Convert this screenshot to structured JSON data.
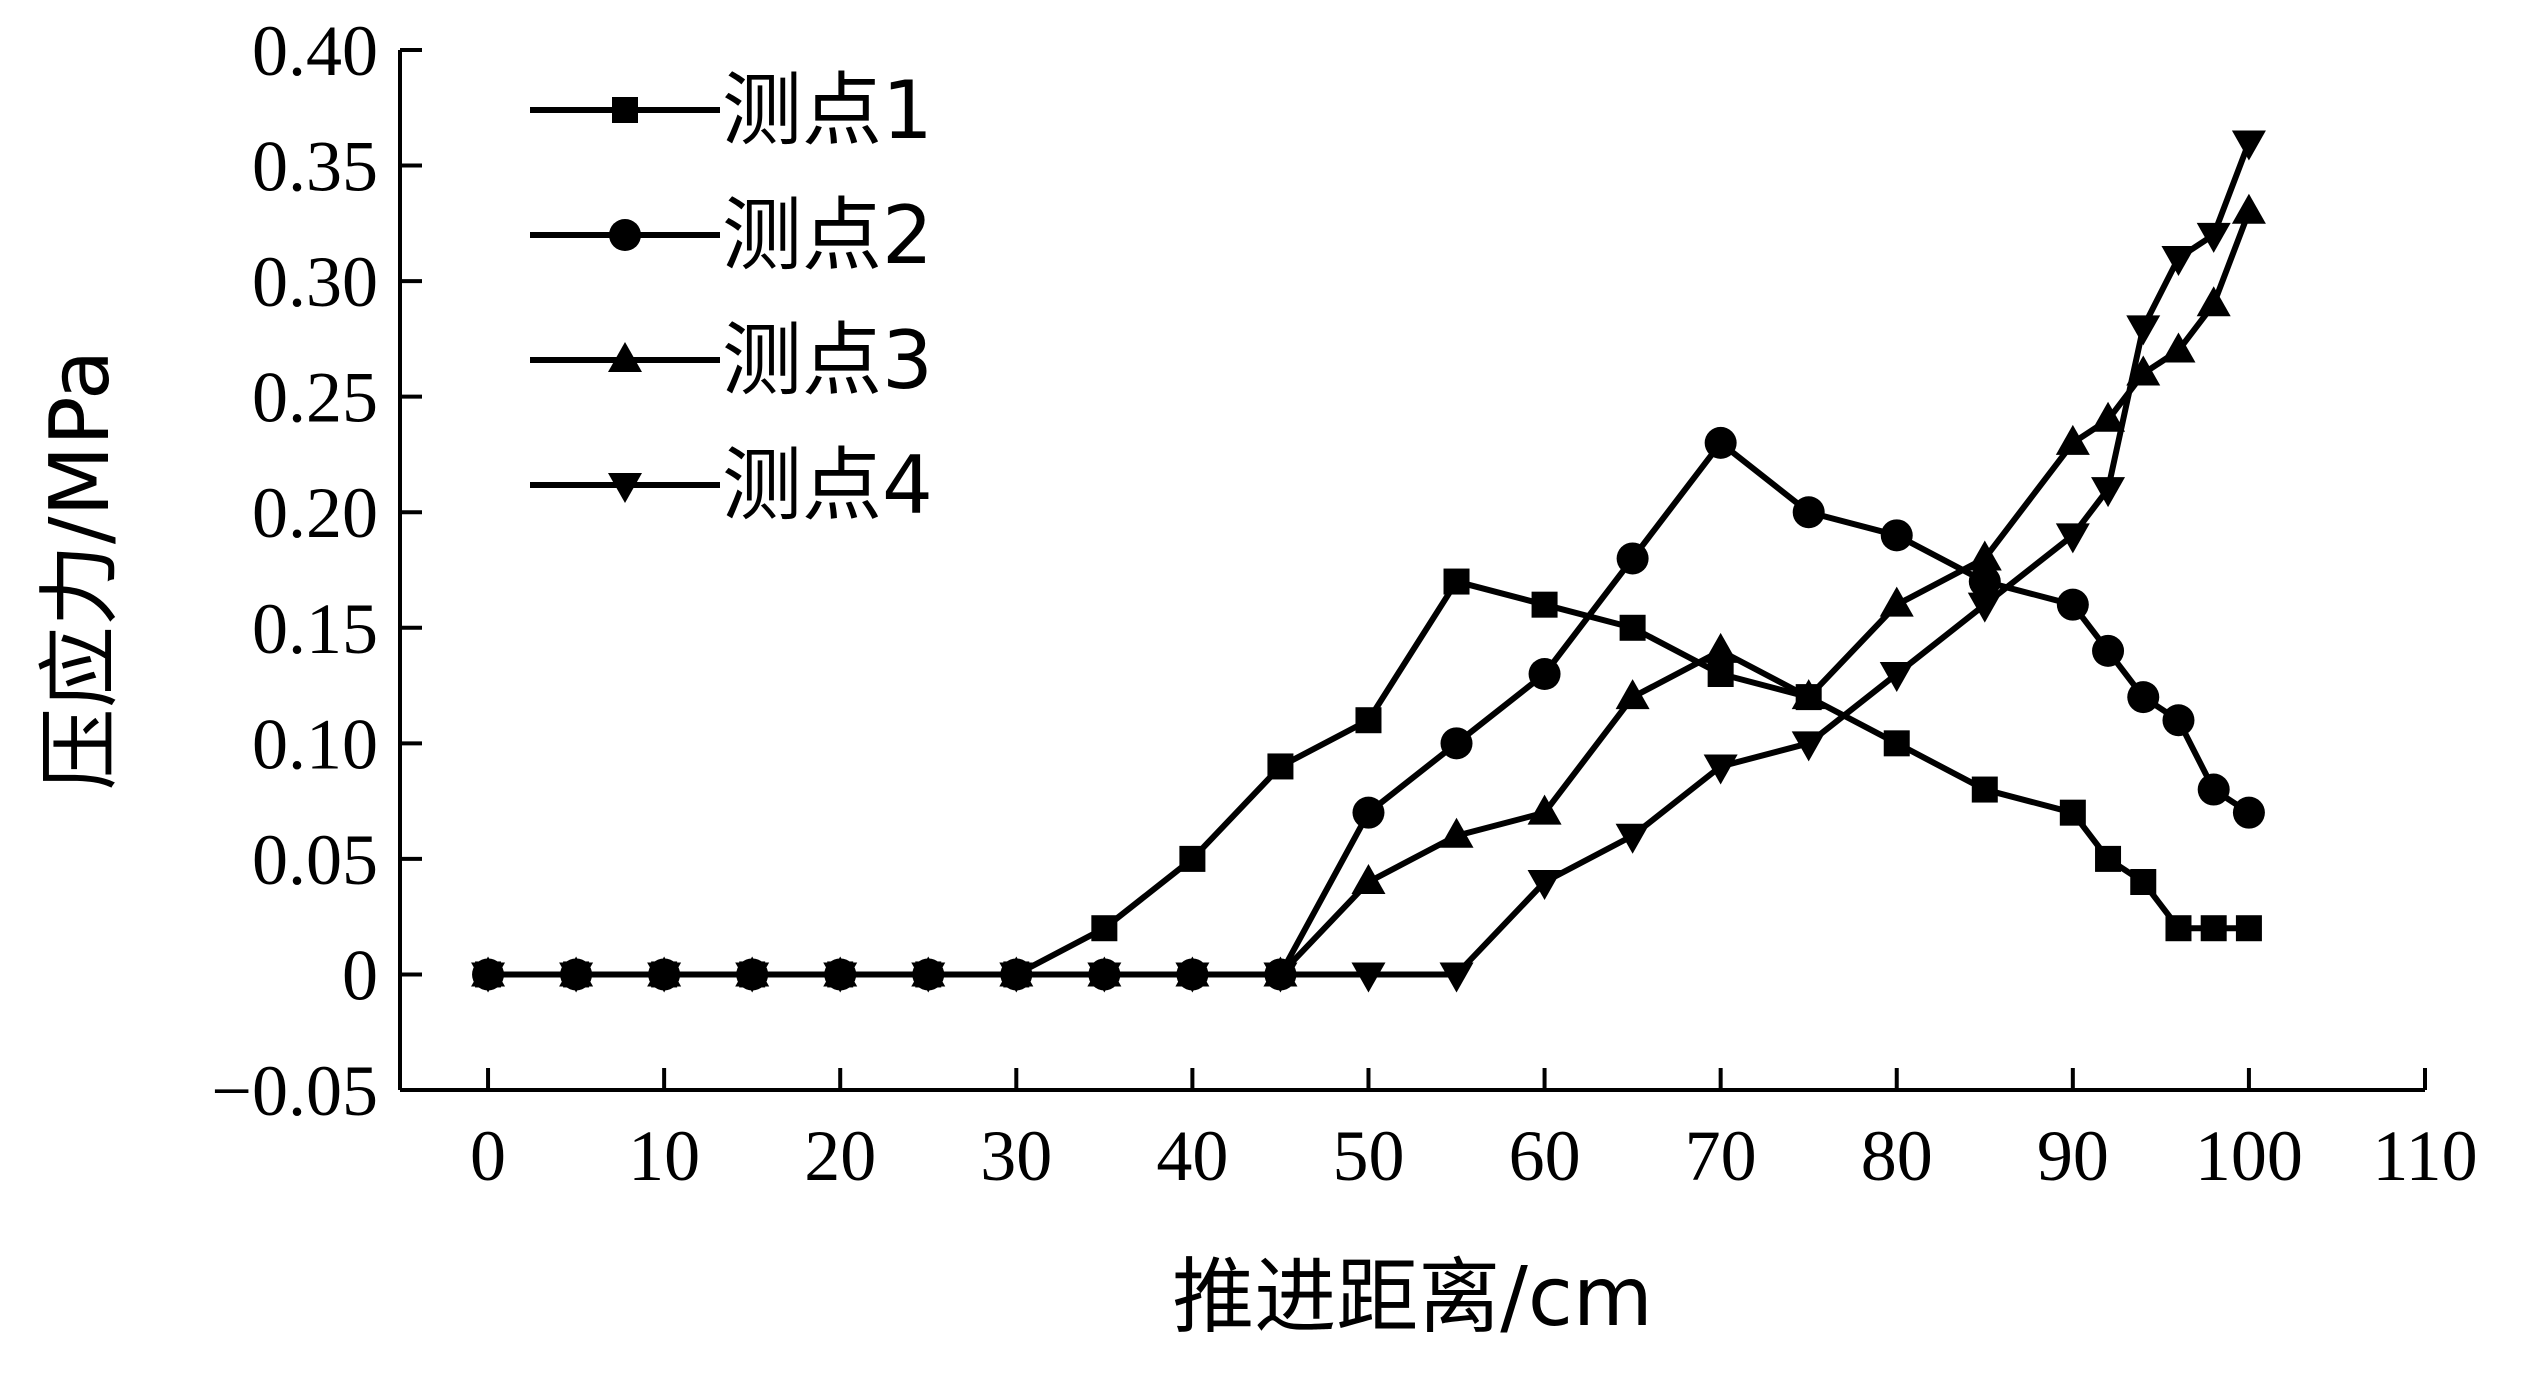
{
  "chart_data": {
    "type": "line",
    "title": "",
    "xlabel": "推进距离/cm",
    "ylabel": "压应力/MPa",
    "xlim": [
      -5,
      110
    ],
    "ylim": [
      -0.05,
      0.4
    ],
    "x_ticks": [
      0,
      10,
      20,
      30,
      40,
      50,
      60,
      70,
      80,
      90,
      100,
      110
    ],
    "x_tick_labels": [
      "0",
      "10",
      "20",
      "30",
      "40",
      "50",
      "60",
      "70",
      "80",
      "90",
      "100",
      "110"
    ],
    "y_ticks": [
      -0.05,
      0,
      0.05,
      0.1,
      0.15,
      0.2,
      0.25,
      0.3,
      0.35,
      0.4
    ],
    "y_tick_labels": [
      "−0.05",
      "0",
      "0.05",
      "0.10",
      "0.15",
      "0.20",
      "0.25",
      "0.30",
      "0.35",
      "0.40"
    ],
    "grid": false,
    "legend_position": "top-left",
    "series": [
      {
        "name": "测点1",
        "marker": "square",
        "color": "#000000",
        "x": [
          0,
          5,
          10,
          15,
          20,
          25,
          30,
          35,
          40,
          45,
          50,
          55,
          60,
          65,
          70,
          75,
          80,
          85,
          90,
          92,
          94,
          96,
          98,
          100
        ],
        "y": [
          0,
          0,
          0,
          0,
          0,
          0,
          0,
          0.02,
          0.05,
          0.09,
          0.11,
          0.17,
          0.16,
          0.15,
          0.13,
          0.12,
          0.1,
          0.08,
          0.07,
          0.05,
          0.04,
          0.02,
          0.02,
          0.02
        ]
      },
      {
        "name": "测点2",
        "marker": "circle",
        "color": "#000000",
        "x": [
          0,
          5,
          10,
          15,
          20,
          25,
          30,
          35,
          40,
          45,
          50,
          55,
          60,
          65,
          70,
          75,
          80,
          85,
          90,
          92,
          94,
          96,
          98,
          100
        ],
        "y": [
          0,
          0,
          0,
          0,
          0,
          0,
          0,
          0,
          0,
          0,
          0.07,
          0.1,
          0.13,
          0.18,
          0.23,
          0.2,
          0.19,
          0.17,
          0.16,
          0.14,
          0.12,
          0.11,
          0.08,
          0.07
        ]
      },
      {
        "name": "测点3",
        "marker": "triangle-up",
        "color": "#000000",
        "x": [
          0,
          5,
          10,
          15,
          20,
          25,
          30,
          35,
          40,
          45,
          50,
          55,
          60,
          65,
          70,
          75,
          80,
          85,
          90,
          92,
          94,
          96,
          98,
          100
        ],
        "y": [
          0,
          0,
          0,
          0,
          0,
          0,
          0,
          0,
          0,
          0,
          0.04,
          0.06,
          0.07,
          0.12,
          0.14,
          0.12,
          0.16,
          0.18,
          0.23,
          0.24,
          0.26,
          0.27,
          0.29,
          0.33
        ]
      },
      {
        "name": "测点4",
        "marker": "triangle-down",
        "color": "#000000",
        "x": [
          0,
          5,
          10,
          15,
          20,
          25,
          30,
          35,
          40,
          45,
          50,
          55,
          60,
          65,
          70,
          75,
          80,
          85,
          90,
          92,
          94,
          96,
          98,
          100
        ],
        "y": [
          0,
          0,
          0,
          0,
          0,
          0,
          0,
          0,
          0,
          0,
          0,
          0,
          0.04,
          0.06,
          0.09,
          0.1,
          0.13,
          0.16,
          0.19,
          0.21,
          0.28,
          0.31,
          0.32,
          0.36
        ]
      }
    ]
  }
}
